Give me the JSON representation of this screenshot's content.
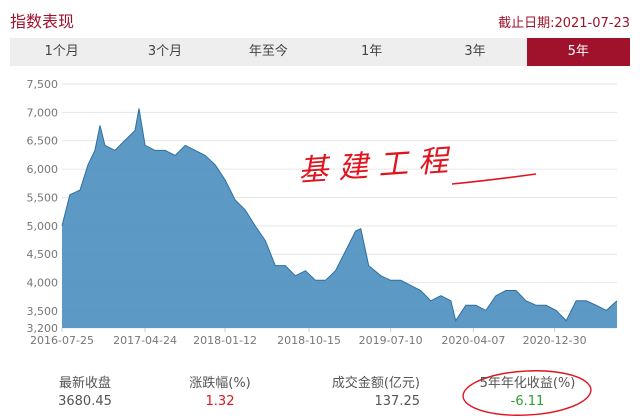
{
  "header": {
    "title": "指数表现",
    "as_of": "截止日期:2021-07-23"
  },
  "tabs": [
    {
      "label": "1个月"
    },
    {
      "label": "3个月"
    },
    {
      "label": "年至今"
    },
    {
      "label": "1年"
    },
    {
      "label": "3年"
    },
    {
      "label": "5年",
      "active": true
    }
  ],
  "annotation": {
    "handwritten": "基建工程",
    "color": "#e0141e"
  },
  "stats": [
    {
      "label": "最新收盘",
      "value": "3680.45",
      "color": "#555555"
    },
    {
      "label": "涨跌幅(%)",
      "value": "1.32",
      "color": "#e0141e"
    },
    {
      "label": "成交金额(亿元)",
      "value": "137.25",
      "color": "#555555"
    },
    {
      "label": "5年年化收益(%)",
      "value": "-6.11",
      "color": "#2e9e2e"
    }
  ],
  "chart_data": {
    "type": "area",
    "title": "",
    "xlabel": "",
    "ylabel": "",
    "color": "#4a8ebf",
    "ylim": [
      3200,
      7500
    ],
    "yticks": [
      "7,500",
      "7,000",
      "6,500",
      "6,000",
      "5,500",
      "5,000",
      "4,500",
      "4,000",
      "3,500",
      "3,200"
    ],
    "ytick_values": [
      7500,
      7000,
      6500,
      6000,
      5500,
      5000,
      4500,
      4000,
      3500,
      3200
    ],
    "xticks": [
      "2016-07-25",
      "2017-04-24",
      "2018-01-12",
      "2018-10-15",
      "2019-07-10",
      "2020-04-07",
      "2020-12-30"
    ],
    "xlim": [
      "2016-07-25",
      "2021-07-23"
    ],
    "grid": true,
    "points": [
      [
        "2016-07-25",
        5000
      ],
      [
        "2016-08-20",
        5550
      ],
      [
        "2016-09-22",
        5630
      ],
      [
        "2016-10-18",
        6070
      ],
      [
        "2016-11-10",
        6330
      ],
      [
        "2016-11-27",
        6770
      ],
      [
        "2016-12-13",
        6420
      ],
      [
        "2017-01-15",
        6330
      ],
      [
        "2017-02-17",
        6510
      ],
      [
        "2017-03-22",
        6680
      ],
      [
        "2017-04-04",
        7070
      ],
      [
        "2017-04-24",
        6420
      ],
      [
        "2017-05-27",
        6330
      ],
      [
        "2017-06-29",
        6330
      ],
      [
        "2017-08-01",
        6240
      ],
      [
        "2017-09-03",
        6420
      ],
      [
        "2017-10-06",
        6330
      ],
      [
        "2017-11-08",
        6240
      ],
      [
        "2017-12-11",
        6070
      ],
      [
        "2018-01-12",
        5810
      ],
      [
        "2018-02-14",
        5460
      ],
      [
        "2018-03-19",
        5280
      ],
      [
        "2018-04-21",
        5000
      ],
      [
        "2018-05-24",
        4740
      ],
      [
        "2018-06-26",
        4300
      ],
      [
        "2018-07-29",
        4300
      ],
      [
        "2018-08-31",
        4120
      ],
      [
        "2018-10-03",
        4210
      ],
      [
        "2018-11-05",
        4040
      ],
      [
        "2018-12-08",
        4040
      ],
      [
        "2019-01-10",
        4210
      ],
      [
        "2019-02-12",
        4560
      ],
      [
        "2019-03-17",
        4910
      ],
      [
        "2019-04-03",
        4950
      ],
      [
        "2019-04-29",
        4300
      ],
      [
        "2019-06-08",
        4120
      ],
      [
        "2019-07-10",
        4040
      ],
      [
        "2019-08-12",
        4040
      ],
      [
        "2019-09-14",
        3950
      ],
      [
        "2019-10-17",
        3860
      ],
      [
        "2019-11-19",
        3680
      ],
      [
        "2019-12-22",
        3770
      ],
      [
        "2020-01-24",
        3680
      ],
      [
        "2020-02-09",
        3330
      ],
      [
        "2020-03-13",
        3600
      ],
      [
        "2020-04-15",
        3600
      ],
      [
        "2020-05-18",
        3510
      ],
      [
        "2020-06-20",
        3770
      ],
      [
        "2020-07-23",
        3860
      ],
      [
        "2020-08-25",
        3860
      ],
      [
        "2020-09-27",
        3680
      ],
      [
        "2020-10-30",
        3600
      ],
      [
        "2020-12-02",
        3600
      ],
      [
        "2021-01-04",
        3510
      ],
      [
        "2021-02-06",
        3330
      ],
      [
        "2021-03-11",
        3680
      ],
      [
        "2021-04-13",
        3680
      ],
      [
        "2021-05-16",
        3600
      ],
      [
        "2021-06-18",
        3510
      ],
      [
        "2021-07-23",
        3680
      ]
    ]
  }
}
